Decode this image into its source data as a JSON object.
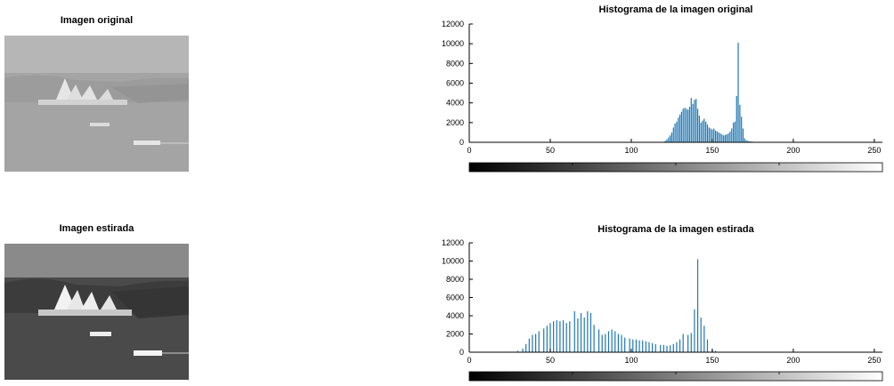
{
  "panels": {
    "original_image": {
      "title": "Imagen original"
    },
    "stretched_image": {
      "title": "Imagen estirada"
    }
  },
  "colors": {
    "bar": "#1f77b4",
    "axis": "#000000"
  },
  "chart_data": [
    {
      "type": "bar",
      "title": "Histograma de la imagen original",
      "xlim": [
        0,
        255
      ],
      "ylim": [
        0,
        12000
      ],
      "xticks": [
        0,
        50,
        100,
        150,
        200,
        250
      ],
      "yticks": [
        0,
        2000,
        4000,
        6000,
        8000,
        10000,
        12000
      ],
      "colorbar": "grayscale 0-255",
      "x": [
        120,
        121,
        122,
        123,
        124,
        125,
        126,
        127,
        128,
        129,
        130,
        131,
        132,
        133,
        134,
        135,
        136,
        137,
        138,
        139,
        140,
        141,
        142,
        143,
        144,
        145,
        146,
        147,
        148,
        149,
        150,
        151,
        152,
        153,
        154,
        155,
        156,
        157,
        158,
        159,
        160,
        161,
        162,
        163,
        164,
        165,
        166,
        167,
        168,
        169,
        170,
        171,
        172,
        173,
        174,
        175,
        176,
        177,
        178,
        179,
        180,
        181,
        182,
        183,
        184,
        185,
        186,
        187,
        188,
        189,
        190
      ],
      "values": [
        50,
        150,
        300,
        500,
        700,
        1000,
        1500,
        1900,
        2100,
        2500,
        2800,
        3100,
        3400,
        3500,
        3400,
        3300,
        3600,
        4500,
        3900,
        4300,
        4400,
        3400,
        2700,
        2000,
        2200,
        2400,
        2100,
        1800,
        1500,
        1400,
        1300,
        1400,
        1200,
        1100,
        1000,
        900,
        800,
        700,
        750,
        800,
        900,
        1100,
        1400,
        2000,
        2100,
        4700,
        10100,
        3800,
        2600,
        1400,
        400,
        200,
        150,
        100,
        80,
        60,
        40,
        20,
        10,
        5,
        5,
        0,
        0,
        0,
        0,
        0,
        0,
        0,
        0,
        0,
        0
      ]
    },
    {
      "type": "bar",
      "title": "Histograma de la imagen estirada",
      "xlim": [
        0,
        255
      ],
      "ylim": [
        0,
        12000
      ],
      "xticks": [
        0,
        50,
        100,
        150,
        200,
        250
      ],
      "yticks": [
        0,
        2000,
        4000,
        6000,
        8000,
        10000,
        12000
      ],
      "colorbar": "grayscale 0-255",
      "x": [
        30,
        33,
        35,
        37,
        39,
        41,
        43,
        46,
        48,
        50,
        52,
        54,
        56,
        58,
        60,
        62,
        65,
        67,
        69,
        71,
        73,
        75,
        77,
        80,
        82,
        84,
        86,
        88,
        90,
        92,
        94,
        96,
        99,
        101,
        103,
        105,
        107,
        109,
        111,
        113,
        115,
        118,
        120,
        122,
        124,
        126,
        128,
        130,
        132,
        135,
        137,
        139,
        141,
        143,
        145,
        147,
        150,
        152,
        154
      ],
      "values": [
        150,
        400,
        900,
        1500,
        1900,
        2000,
        2300,
        2600,
        2900,
        3200,
        3400,
        3500,
        3400,
        3500,
        3200,
        3400,
        4500,
        3700,
        4300,
        3800,
        4500,
        4300,
        3000,
        2500,
        1900,
        2000,
        2300,
        2500,
        2300,
        2000,
        1900,
        1600,
        1500,
        1400,
        1400,
        1300,
        1300,
        1200,
        1100,
        1000,
        900,
        800,
        800,
        700,
        750,
        900,
        1100,
        1400,
        2000,
        1900,
        2100,
        4700,
        10200,
        3800,
        2900,
        1400,
        300,
        150,
        50
      ]
    }
  ]
}
